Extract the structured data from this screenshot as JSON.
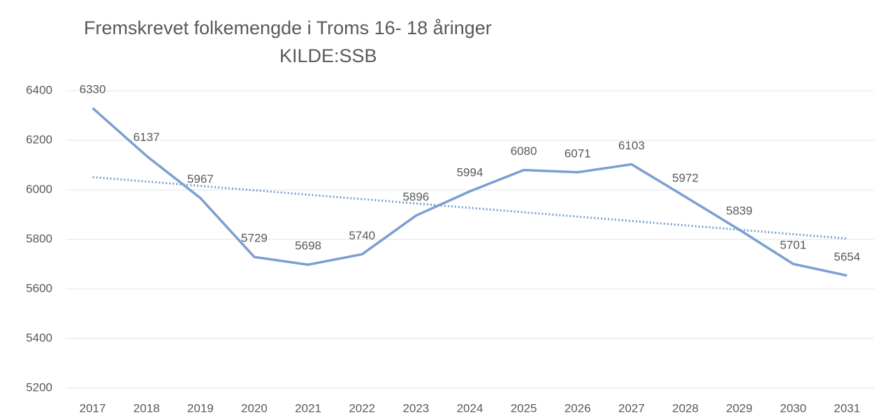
{
  "chart_data": {
    "type": "line",
    "title": "Fremskrevet folkemengde i Troms 16- 18 åringer",
    "subtitle": "KILDE:SSB",
    "categories": [
      "2017",
      "2018",
      "2019",
      "2020",
      "2021",
      "2022",
      "2023",
      "2024",
      "2025",
      "2026",
      "2027",
      "2028",
      "2029",
      "2030",
      "2031"
    ],
    "series": [
      {
        "color": "#7b9fd2",
        "values": [
          6330,
          6137,
          5967,
          5729,
          5698,
          5740,
          5896,
          5994,
          6080,
          6071,
          6103,
          5972,
          5839,
          5701,
          5654
        ]
      }
    ],
    "ylim": [
      5200,
      6400
    ],
    "yticks": [
      5200,
      5400,
      5600,
      5800,
      6000,
      6200,
      6400
    ],
    "grid": true,
    "trendline": true,
    "data_labels": true
  }
}
